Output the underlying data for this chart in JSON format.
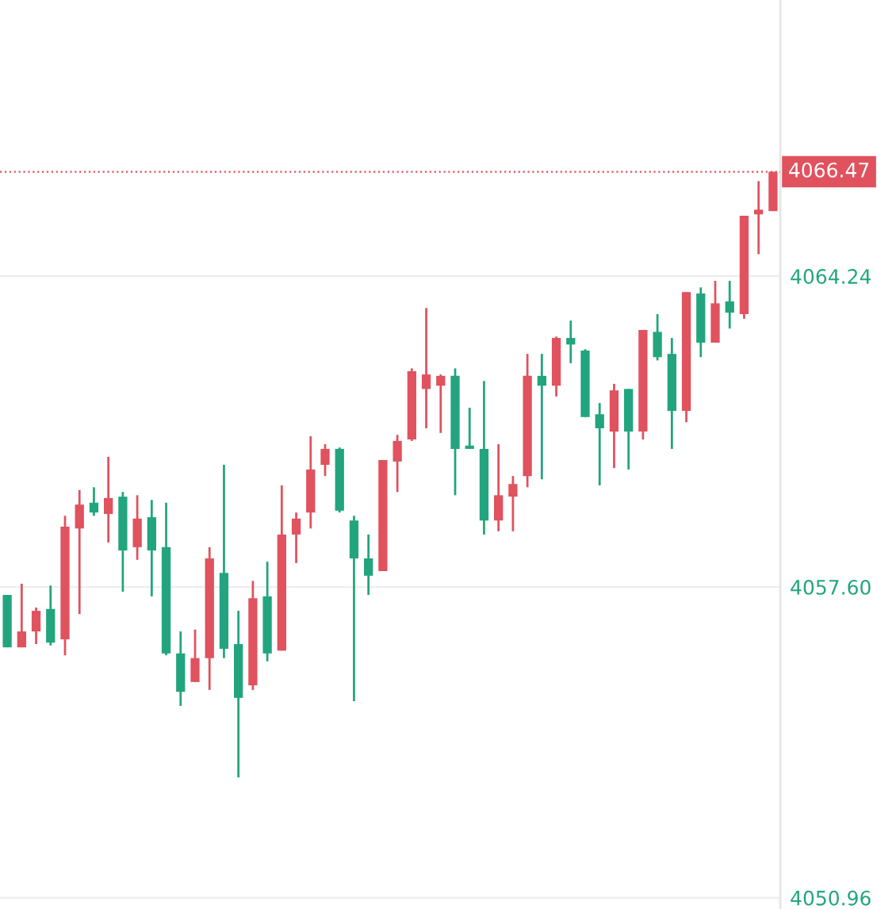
{
  "chart_data": {
    "type": "candlestick",
    "categories": [
      null,
      null,
      null,
      null,
      null,
      null,
      null,
      null,
      null,
      null,
      null,
      null,
      null,
      null,
      null,
      null,
      null,
      null,
      null,
      null,
      null,
      null,
      null,
      null,
      null,
      null,
      null,
      null,
      null,
      null,
      null,
      null,
      null,
      null,
      null,
      null,
      null,
      null,
      null,
      null,
      null,
      null,
      null,
      null,
      null,
      null,
      null,
      null,
      null,
      null,
      null,
      null,
      null,
      null
    ],
    "ohlc": [
      [
        4057.43,
        4057.43,
        4056.31,
        4056.31
      ],
      [
        4056.31,
        4057.67,
        4056.31,
        4056.65
      ],
      [
        4056.65,
        4057.16,
        4056.38,
        4057.09
      ],
      [
        4057.13,
        4057.63,
        4056.35,
        4056.41
      ],
      [
        4056.48,
        4059.12,
        4056.14,
        4058.89
      ],
      [
        4058.85,
        4059.67,
        4057.02,
        4059.36
      ],
      [
        4059.4,
        4059.73,
        4059.12,
        4059.19
      ],
      [
        4059.16,
        4060.38,
        4058.55,
        4059.5
      ],
      [
        4059.53,
        4059.63,
        4057.5,
        4058.38
      ],
      [
        4058.45,
        4059.56,
        4058.18,
        4059.06
      ],
      [
        4059.09,
        4059.46,
        4057.4,
        4058.38
      ],
      [
        4058.45,
        4059.4,
        4056.14,
        4056.18
      ],
      [
        4056.18,
        4056.65,
        4055.06,
        4055.36
      ],
      [
        4055.57,
        4056.69,
        4055.57,
        4056.08
      ],
      [
        4056.08,
        4058.45,
        4055.4,
        4058.21
      ],
      [
        4057.9,
        4060.21,
        4056.08,
        4056.28
      ],
      [
        4056.38,
        4057.09,
        4053.53,
        4055.23
      ],
      [
        4055.5,
        4057.73,
        4055.4,
        4057.36
      ],
      [
        4057.4,
        4058.14,
        4056.01,
        4056.18
      ],
      [
        4056.24,
        4059.77,
        4056.24,
        4058.72
      ],
      [
        4058.72,
        4059.19,
        4058.11,
        4059.06
      ],
      [
        4059.19,
        4060.82,
        4058.85,
        4060.11
      ],
      [
        4060.21,
        4060.65,
        4059.97,
        4060.55
      ],
      [
        4060.55,
        4060.58,
        4059.19,
        4059.23
      ],
      [
        4059.02,
        4059.12,
        4055.16,
        4058.21
      ],
      [
        4058.21,
        4058.72,
        4057.43,
        4057.84
      ],
      [
        4057.94,
        4060.31,
        4057.94,
        4060.31
      ],
      [
        4060.28,
        4060.85,
        4059.63,
        4060.72
      ],
      [
        4060.75,
        4062.27,
        4060.72,
        4062.21
      ],
      [
        4061.83,
        4063.56,
        4060.99,
        4062.14
      ],
      [
        4061.9,
        4062.14,
        4060.89,
        4062.11
      ],
      [
        4062.11,
        4062.27,
        4059.56,
        4060.55
      ],
      [
        4060.62,
        4061.43,
        4060.55,
        4060.55
      ],
      [
        4060.55,
        4062.0,
        4058.72,
        4059.02
      ],
      [
        4059.02,
        4060.65,
        4058.79,
        4059.56
      ],
      [
        4059.53,
        4059.97,
        4058.79,
        4059.8
      ],
      [
        4059.97,
        4062.58,
        4059.73,
        4062.11
      ],
      [
        4062.11,
        4062.58,
        4059.9,
        4061.9
      ],
      [
        4061.9,
        4062.95,
        4061.67,
        4062.92
      ],
      [
        4062.92,
        4063.29,
        4062.38,
        4062.78
      ],
      [
        4062.65,
        4062.68,
        4061.23,
        4061.23
      ],
      [
        4061.29,
        4061.53,
        4059.77,
        4060.99
      ],
      [
        4060.92,
        4061.94,
        4060.14,
        4061.8
      ],
      [
        4061.83,
        4061.83,
        4060.11,
        4060.92
      ],
      [
        4060.92,
        4063.09,
        4060.75,
        4063.09
      ],
      [
        4063.05,
        4063.43,
        4062.44,
        4062.51
      ],
      [
        4062.58,
        4062.92,
        4060.55,
        4061.36
      ],
      [
        4061.36,
        4063.9,
        4061.12,
        4063.9
      ],
      [
        4063.87,
        4064.0,
        4062.51,
        4062.82
      ],
      [
        4062.82,
        4064.14,
        4062.82,
        4063.66
      ],
      [
        4063.7,
        4064.14,
        4063.12,
        4063.46
      ],
      [
        4063.43,
        4065.53,
        4063.33,
        4065.53
      ],
      [
        4065.56,
        4066.27,
        4064.71,
        4065.66
      ],
      [
        4065.63,
        4066.47,
        4065.63,
        4066.47
      ]
    ],
    "colors": [
      "#22a57e",
      "#e0525e",
      "#e0525e",
      "#22a57e",
      "#e0525e",
      "#e0525e",
      "#22a57e",
      "#e0525e",
      "#22a57e",
      "#e0525e",
      "#22a57e",
      "#22a57e",
      "#22a57e",
      "#e0525e",
      "#e0525e",
      "#22a57e",
      "#22a57e",
      "#e0525e",
      "#22a57e",
      "#e0525e",
      "#e0525e",
      "#e0525e",
      "#e0525e",
      "#22a57e",
      "#22a57e",
      "#22a57e",
      "#e0525e",
      "#e0525e",
      "#e0525e",
      "#e0525e",
      "#e0525e",
      "#22a57e",
      "#22a57e",
      "#22a57e",
      "#e0525e",
      "#e0525e",
      "#e0525e",
      "#22a57e",
      "#e0525e",
      "#22a57e",
      "#22a57e",
      "#22a57e",
      "#e0525e",
      "#22a57e",
      "#e0525e",
      "#22a57e",
      "#22a57e",
      "#e0525e",
      "#22a57e",
      "#e0525e",
      "#22a57e",
      "#e0525e",
      "#e0525e",
      "#e0525e"
    ],
    "ylim": [
      4050.72,
      4070.14
    ],
    "yticks": [
      {
        "value": 4050.96,
        "label": "4050.96"
      },
      {
        "value": 4057.6,
        "label": "4057.60"
      },
      {
        "value": 4064.24,
        "label": "4064.24"
      }
    ],
    "grid": "y",
    "tick_labels": "y",
    "ref_lines": [
      {
        "axis": "y",
        "value": 4066.47,
        "label": "4066.47",
        "color": "#e0525e",
        "line_style": "dotted"
      }
    ]
  }
}
